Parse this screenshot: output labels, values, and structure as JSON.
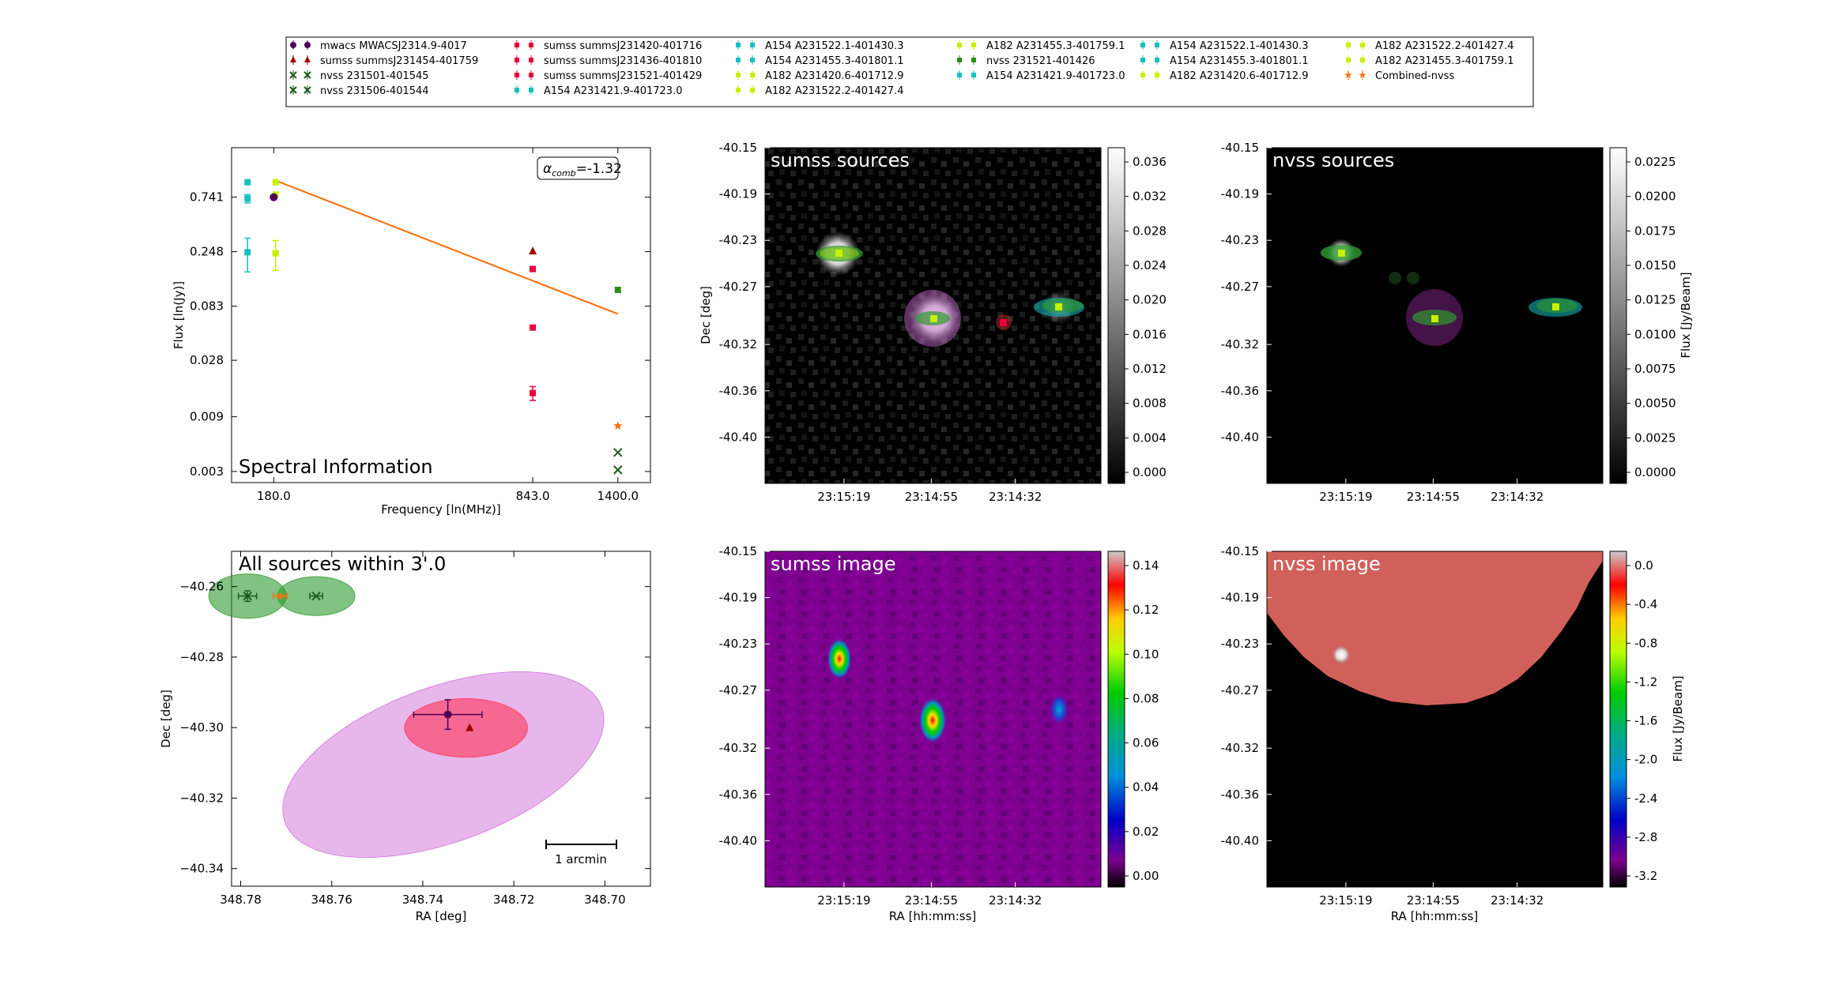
{
  "legend": {
    "columns": [
      [
        {
          "label": "mwacs MWACSJ2314.9-4017",
          "color": "#4b0055",
          "marker": "circle"
        },
        {
          "label": "sumss summsJ231454-401759",
          "color": "#a00000",
          "marker": "triangle"
        },
        {
          "label": "nvss 231501-401545",
          "color": "#1f5a1f",
          "marker": "x"
        },
        {
          "label": "nvss 231506-401544",
          "color": "#1f5a1f",
          "marker": "x"
        }
      ],
      [
        {
          "label": "sumss summsJ231420-401716",
          "color": "#e8003c",
          "marker": "square"
        },
        {
          "label": "sumss summsJ231436-401810",
          "color": "#e8003c",
          "marker": "square"
        },
        {
          "label": "sumss summsJ231521-401429",
          "color": "#e8003c",
          "marker": "square"
        },
        {
          "label": "A154 A231421.9-401723.0",
          "color": "#18c0c0",
          "marker": "square"
        }
      ],
      [
        {
          "label": "A154 A231522.1-401430.3",
          "color": "#18c0c0",
          "marker": "square"
        },
        {
          "label": "A154 A231455.3-401801.1",
          "color": "#18c0c0",
          "marker": "square"
        },
        {
          "label": "A182 A231420.6-401712.9",
          "color": "#c8f000",
          "marker": "square"
        },
        {
          "label": "A182 A231522.2-401427.4",
          "color": "#c8f000",
          "marker": "square"
        }
      ],
      [
        {
          "label": "A182 A231455.3-401759.1",
          "color": "#c8f000",
          "marker": "square"
        },
        {
          "label": "nvss 231521-401426",
          "color": "#2e8b1e",
          "marker": "square"
        },
        {
          "label": "A154 A231421.9-401723.0",
          "color": "#18c0c0",
          "marker": "square"
        }
      ],
      [
        {
          "label": "A154 A231522.1-401430.3",
          "color": "#18c0c0",
          "marker": "square"
        },
        {
          "label": "A154 A231455.3-401801.1",
          "color": "#18c0c0",
          "marker": "square"
        },
        {
          "label": "A182 A231420.6-401712.9",
          "color": "#c8f000",
          "marker": "square"
        }
      ],
      [
        {
          "label": "A182 A231522.2-401427.4",
          "color": "#c8f000",
          "marker": "square"
        },
        {
          "label": "A182 A231455.3-401759.1",
          "color": "#c8f000",
          "marker": "square"
        },
        {
          "label": "Combined-nvss",
          "color": "#ff7010",
          "marker": "star"
        }
      ]
    ]
  },
  "chart_data": [
    {
      "type": "scatter",
      "panel": "spectral",
      "annotation": "Spectral Information",
      "alpha_label": "α",
      "alpha_sub": "comb",
      "alpha_value": "=-1.32",
      "xlabel": "Frequency [ln(MHz)]",
      "ylabel": "Flux [ln(Jy)]",
      "x_log": true,
      "y_log": true,
      "xlim": [
        140,
        1700
      ],
      "ylim": [
        0.0024,
        2.0
      ],
      "xticks": [
        {
          "v": 180,
          "l": "180.0"
        },
        {
          "v": 843,
          "l": "843.0"
        },
        {
          "v": 1400,
          "l": "1400.0"
        }
      ],
      "yticks": [
        {
          "v": 0.741,
          "l": "0.741"
        },
        {
          "v": 0.248,
          "l": "0.248"
        },
        {
          "v": 0.083,
          "l": "0.083"
        },
        {
          "v": 0.028,
          "l": "0.028"
        },
        {
          "v": 0.009,
          "l": "0.009"
        },
        {
          "v": 0.003,
          "l": "0.003"
        }
      ],
      "fit_line": {
        "color": "#ff6a00",
        "points": [
          [
            180,
            1.05
          ],
          [
            1400,
            0.071
          ]
        ]
      },
      "points": [
        {
          "x": 154,
          "y": 1.0,
          "color": "#18c0c0",
          "marker": "square"
        },
        {
          "x": 154,
          "y": 0.72,
          "err": 0.06,
          "color": "#18c0c0",
          "marker": "square"
        },
        {
          "x": 154,
          "y": 0.245,
          "err": 0.08,
          "color": "#18c0c0",
          "marker": "square"
        },
        {
          "x": 182,
          "y": 1.0,
          "color": "#c8f000",
          "marker": "square"
        },
        {
          "x": 182,
          "y": 0.78,
          "color": "#c8f000",
          "marker": "square"
        },
        {
          "x": 182,
          "y": 0.24,
          "err": 0.07,
          "color": "#c8f000",
          "marker": "square"
        },
        {
          "x": 180,
          "y": 0.74,
          "color": "#4b0055",
          "marker": "circle"
        },
        {
          "x": 843,
          "y": 0.25,
          "color": "#a00000",
          "marker": "triangle"
        },
        {
          "x": 843,
          "y": 0.175,
          "color": "#e8003c",
          "marker": "square"
        },
        {
          "x": 843,
          "y": 0.054,
          "color": "#e8003c",
          "marker": "square"
        },
        {
          "x": 843,
          "y": 0.0145,
          "err": 0.002,
          "color": "#e8003c",
          "marker": "square"
        },
        {
          "x": 1400,
          "y": 0.115,
          "color": "#2e8b1e",
          "marker": "square"
        },
        {
          "x": 1400,
          "y": 0.0075,
          "color": "#ff7010",
          "marker": "star"
        },
        {
          "x": 1400,
          "y": 0.0044,
          "color": "#1f5a1f",
          "marker": "x"
        },
        {
          "x": 1400,
          "y": 0.0031,
          "color": "#1f5a1f",
          "marker": "x"
        }
      ]
    },
    {
      "type": "scatter",
      "panel": "all-sources",
      "annotation": "All sources within 3'.0",
      "xlabel": "RA [deg]",
      "ylabel": "Dec [deg]",
      "xlim": [
        348.782,
        348.69
      ],
      "ylim": [
        -40.345,
        -40.25
      ],
      "xticks": [
        {
          "v": 348.78,
          "l": "348.78"
        },
        {
          "v": 348.76,
          "l": "348.76"
        },
        {
          "v": 348.74,
          "l": "348.74"
        },
        {
          "v": 348.72,
          "l": "348.72"
        },
        {
          "v": 348.7,
          "l": "348.70"
        }
      ],
      "yticks": [
        {
          "v": -40.26,
          "l": "−40.26"
        },
        {
          "v": -40.28,
          "l": "−40.28"
        },
        {
          "v": -40.3,
          "l": "−40.30"
        },
        {
          "v": -40.32,
          "l": "−40.32"
        },
        {
          "v": -40.34,
          "l": "−40.34"
        }
      ],
      "scalebar_label": "1 arcmin",
      "ellipses": [
        {
          "x": 348.7355,
          "y": -40.3105,
          "rx": 0.037,
          "ry": 0.022,
          "angle": -20,
          "color": "#d070d8",
          "opacity": 0.5
        },
        {
          "x": 348.7305,
          "y": -40.3001,
          "rx": 0.0135,
          "ry": 0.0083,
          "angle": 0,
          "color": "#ff3355",
          "opacity": 0.6
        },
        {
          "x": 348.7785,
          "y": -40.2627,
          "rx": 0.0085,
          "ry": 0.0063,
          "angle": 0,
          "color": "#2e9a2e",
          "opacity": 0.6
        },
        {
          "x": 348.7634,
          "y": -40.2627,
          "rx": 0.0085,
          "ry": 0.0055,
          "angle": 0,
          "color": "#2e9a2e",
          "opacity": 0.6
        }
      ],
      "points": [
        {
          "x": 348.7345,
          "y": -40.2963,
          "xerr": 0.0075,
          "yerr": 0.0042,
          "color": "#4b0055",
          "marker": "circle"
        },
        {
          "x": 348.7297,
          "y": -40.3001,
          "color": "#a00000",
          "marker": "triangle"
        },
        {
          "x": 348.7785,
          "y": -40.2627,
          "xerr": 0.002,
          "yerr": 0.0015,
          "color": "#1f5a1f",
          "marker": "x"
        },
        {
          "x": 348.7634,
          "y": -40.2627,
          "xerr": 0.0014,
          "color": "#1f5a1f",
          "marker": "x"
        },
        {
          "x": 348.7713,
          "y": -40.2627,
          "xerr": 0.0015,
          "color": "#ff7010",
          "marker": "star"
        }
      ]
    },
    {
      "type": "heatmap",
      "panel": "sumss-sources",
      "annotation": "sumss sources",
      "ylabel": "Dec [deg]",
      "cmap": "gray",
      "xticks": [
        "23:15:19",
        "23:14:55",
        "23:14:32"
      ],
      "yticks": [
        "-40.15",
        "-40.19",
        "-40.23",
        "-40.27",
        "-40.32",
        "-40.36",
        "-40.40"
      ],
      "cbar_ticks": [
        "0.036",
        "0.032",
        "0.028",
        "0.024",
        "0.020",
        "0.016",
        "0.012",
        "0.008",
        "0.004",
        "0.000"
      ]
    },
    {
      "type": "heatmap",
      "panel": "nvss-sources",
      "annotation": "nvss sources",
      "cmap": "gray",
      "cbar_label": "Flux [Jy/Beam]",
      "xticks": [
        "23:15:19",
        "23:14:55",
        "23:14:32"
      ],
      "yticks": [
        "-40.15",
        "-40.19",
        "-40.23",
        "-40.27",
        "-40.32",
        "-40.36",
        "-40.40"
      ],
      "cbar_ticks": [
        "0.0225",
        "0.0200",
        "0.0175",
        "0.0150",
        "0.0125",
        "0.0100",
        "0.0075",
        "0.0050",
        "0.0025",
        "0.0000"
      ]
    },
    {
      "type": "heatmap",
      "panel": "sumss-image",
      "annotation": "sumss image",
      "xlabel": "RA [hh:mm:ss]",
      "cmap": "spectral",
      "xticks": [
        "23:15:19",
        "23:14:55",
        "23:14:32"
      ],
      "yticks": [
        "-40.15",
        "-40.19",
        "-40.23",
        "-40.27",
        "-40.32",
        "-40.36",
        "-40.40"
      ],
      "cbar_ticks": [
        "0.14",
        "0.12",
        "0.10",
        "0.08",
        "0.06",
        "0.04",
        "0.02",
        "0.00"
      ]
    },
    {
      "type": "heatmap",
      "panel": "nvss-image",
      "annotation": "nvss image",
      "xlabel": "RA [hh:mm:ss]",
      "cmap": "spectral",
      "cbar_label": "Flux [Jy/Beam]",
      "xticks": [
        "23:15:19",
        "23:14:55",
        "23:14:32"
      ],
      "yticks": [
        "-40.15",
        "-40.19",
        "-40.23",
        "-40.27",
        "-40.32",
        "-40.36",
        "-40.40"
      ],
      "cbar_ticks": [
        "0.0",
        "-0.4",
        "-0.8",
        "-1.2",
        "-1.6",
        "-2.0",
        "-2.4",
        "-2.8",
        "-3.2"
      ]
    }
  ]
}
